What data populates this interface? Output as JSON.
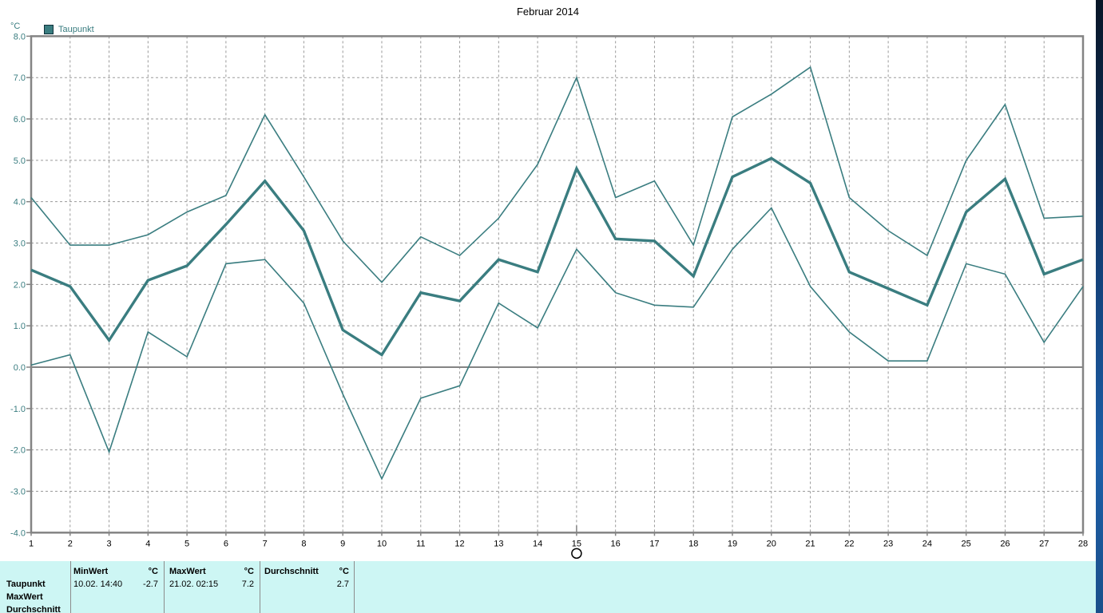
{
  "chart_data": {
    "type": "line",
    "title": "Februar 2014",
    "legend": "Taupunkt",
    "y_unit": "°C",
    "line_color": "#3a7d80",
    "ylim": [
      -4.0,
      8.0
    ],
    "y_ticks": [
      "8.0",
      "7.0",
      "6.0",
      "5.0",
      "4.0",
      "3.0",
      "2.0",
      "1.0",
      "0.0",
      "-1.0",
      "-2.0",
      "-3.0",
      "-4.0"
    ],
    "x": [
      1,
      2,
      3,
      4,
      5,
      6,
      7,
      8,
      9,
      10,
      11,
      12,
      13,
      14,
      15,
      16,
      17,
      18,
      19,
      20,
      21,
      22,
      23,
      24,
      25,
      26,
      27,
      28
    ],
    "marked_day": 15,
    "grid": true,
    "series": [
      {
        "name": "max",
        "values": [
          4.1,
          2.95,
          2.95,
          3.2,
          3.75,
          4.15,
          6.1,
          4.6,
          3.05,
          2.05,
          3.15,
          2.7,
          3.6,
          4.9,
          7.0,
          4.1,
          4.5,
          2.95,
          6.05,
          6.6,
          7.25,
          4.1,
          3.3,
          2.7,
          5.0,
          6.35,
          3.6,
          3.65
        ]
      },
      {
        "name": "mean",
        "values": [
          2.35,
          1.95,
          0.65,
          2.1,
          2.45,
          3.45,
          4.5,
          3.3,
          0.9,
          0.3,
          1.8,
          1.6,
          2.6,
          2.3,
          4.8,
          3.1,
          3.05,
          2.2,
          4.6,
          5.05,
          4.45,
          2.3,
          1.9,
          1.5,
          3.75,
          4.55,
          2.25,
          2.6
        ]
      },
      {
        "name": "min",
        "values": [
          0.05,
          0.3,
          -2.05,
          0.85,
          0.25,
          2.5,
          2.6,
          1.55,
          -0.65,
          -2.7,
          -0.75,
          -0.45,
          1.55,
          0.95,
          2.85,
          1.8,
          1.5,
          1.45,
          2.85,
          3.85,
          1.95,
          0.85,
          0.15,
          0.15,
          2.5,
          2.25,
          0.6,
          1.95
        ]
      }
    ]
  },
  "table": {
    "row_labels": [
      "Taupunkt",
      "MaxWert",
      "Durchschnitt"
    ],
    "columns": [
      {
        "header": "MinWert",
        "unit": "°C",
        "date": "10.02.  14:40",
        "value": "-2.7"
      },
      {
        "header": "MaxWert",
        "unit": "°C",
        "date": "21.02.  02:15",
        "value": "7.2"
      },
      {
        "header": "Durchschnitt",
        "unit": "°C",
        "date": "",
        "value": "2.7"
      }
    ]
  }
}
